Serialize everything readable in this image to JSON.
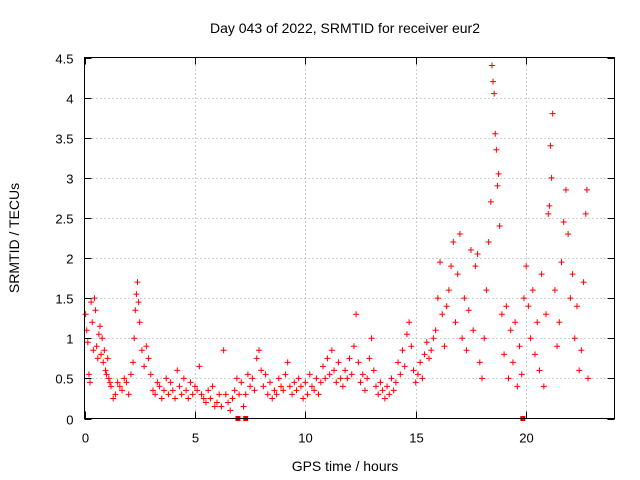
{
  "chart_data": {
    "type": "scatter",
    "title": "Day 043 of 2022, SRMTID for receiver eur2",
    "xlabel": "GPS time / hours",
    "ylabel": "SRMTID / TECUs",
    "xlim": [
      0,
      24
    ],
    "ylim": [
      0,
      4.5
    ],
    "x_ticks": [
      0,
      5,
      10,
      15,
      20
    ],
    "x_tick_labels": [
      "0",
      "5",
      "10",
      "15",
      "20"
    ],
    "y_ticks": [
      0,
      0.5,
      1,
      1.5,
      2,
      2.5,
      3,
      3.5,
      4,
      4.5
    ],
    "y_tick_labels": [
      "0",
      "0.5",
      "1",
      "1.5",
      "2",
      "2.5",
      "3",
      "3.5",
      "4",
      "4.5"
    ],
    "grid": true,
    "marker": "plus",
    "color": "#ff0000",
    "series": [
      {
        "name": "SRMTID",
        "points": [
          [
            0.05,
            1.3
          ],
          [
            0.1,
            1.1
          ],
          [
            0.15,
            0.95
          ],
          [
            0.2,
            0.55
          ],
          [
            0.25,
            0.45
          ],
          [
            0.3,
            1.45
          ],
          [
            0.35,
            1.2
          ],
          [
            0.4,
            0.85
          ],
          [
            0.45,
            1.5
          ],
          [
            0.5,
            1.35
          ],
          [
            0.55,
            0.9
          ],
          [
            0.6,
            0.75
          ],
          [
            0.65,
            1.05
          ],
          [
            0.7,
            1.15
          ],
          [
            0.75,
            0.8
          ],
          [
            0.8,
            1.0
          ],
          [
            0.85,
            0.7
          ],
          [
            0.9,
            0.85
          ],
          [
            0.95,
            0.6
          ],
          [
            1.0,
            0.55
          ],
          [
            1.05,
            0.75
          ],
          [
            1.1,
            0.5
          ],
          [
            1.15,
            0.45
          ],
          [
            1.2,
            0.4
          ],
          [
            1.3,
            0.25
          ],
          [
            1.4,
            0.3
          ],
          [
            1.5,
            0.45
          ],
          [
            1.6,
            0.4
          ],
          [
            1.7,
            0.35
          ],
          [
            1.8,
            0.5
          ],
          [
            1.9,
            0.45
          ],
          [
            2.0,
            0.3
          ],
          [
            2.1,
            0.55
          ],
          [
            2.2,
            0.7
          ],
          [
            2.25,
            1.0
          ],
          [
            2.3,
            1.35
          ],
          [
            2.35,
            1.55
          ],
          [
            2.4,
            1.7
          ],
          [
            2.45,
            1.45
          ],
          [
            2.5,
            1.2
          ],
          [
            2.6,
            0.85
          ],
          [
            2.7,
            0.65
          ],
          [
            2.8,
            0.9
          ],
          [
            2.9,
            0.75
          ],
          [
            3.0,
            0.55
          ],
          [
            3.1,
            0.35
          ],
          [
            3.2,
            0.3
          ],
          [
            3.3,
            0.45
          ],
          [
            3.4,
            0.4
          ],
          [
            3.5,
            0.25
          ],
          [
            3.6,
            0.35
          ],
          [
            3.7,
            0.5
          ],
          [
            3.8,
            0.3
          ],
          [
            3.9,
            0.45
          ],
          [
            4.0,
            0.35
          ],
          [
            4.1,
            0.25
          ],
          [
            4.2,
            0.6
          ],
          [
            4.3,
            0.4
          ],
          [
            4.4,
            0.3
          ],
          [
            4.5,
            0.5
          ],
          [
            4.6,
            0.35
          ],
          [
            4.7,
            0.25
          ],
          [
            4.8,
            0.45
          ],
          [
            4.9,
            0.3
          ],
          [
            5.0,
            0.4
          ],
          [
            5.1,
            0.35
          ],
          [
            5.2,
            0.65
          ],
          [
            5.3,
            0.3
          ],
          [
            5.4,
            0.25
          ],
          [
            5.5,
            0.2
          ],
          [
            5.6,
            0.35
          ],
          [
            5.7,
            0.25
          ],
          [
            5.8,
            0.4
          ],
          [
            5.9,
            0.15
          ],
          [
            6.0,
            0.2
          ],
          [
            6.1,
            0.3
          ],
          [
            6.2,
            0.15
          ],
          [
            6.3,
            0.85
          ],
          [
            6.4,
            0.3
          ],
          [
            6.5,
            0.2
          ],
          [
            6.6,
            0.1
          ],
          [
            6.7,
            0.25
          ],
          [
            6.8,
            0.35
          ],
          [
            6.9,
            0.5
          ],
          [
            7.0,
            0.3
          ],
          [
            7.1,
            0.45
          ],
          [
            7.2,
            0.15
          ],
          [
            7.3,
            0.3
          ],
          [
            7.4,
            0.55
          ],
          [
            7.5,
            0.4
          ],
          [
            7.6,
            0.5
          ],
          [
            7.7,
            0.35
          ],
          [
            7.8,
            0.75
          ],
          [
            7.9,
            0.85
          ],
          [
            8.0,
            0.6
          ],
          [
            8.1,
            0.4
          ],
          [
            8.2,
            0.55
          ],
          [
            8.3,
            0.3
          ],
          [
            8.4,
            0.45
          ],
          [
            8.5,
            0.25
          ],
          [
            8.6,
            0.35
          ],
          [
            8.7,
            0.3
          ],
          [
            8.8,
            0.5
          ],
          [
            8.9,
            0.4
          ],
          [
            9.0,
            0.35
          ],
          [
            9.1,
            0.55
          ],
          [
            9.2,
            0.7
          ],
          [
            9.3,
            0.4
          ],
          [
            9.4,
            0.3
          ],
          [
            9.5,
            0.45
          ],
          [
            9.6,
            0.35
          ],
          [
            9.7,
            0.5
          ],
          [
            9.8,
            0.4
          ],
          [
            9.9,
            0.25
          ],
          [
            10.0,
            0.45
          ],
          [
            10.1,
            0.3
          ],
          [
            10.2,
            0.55
          ],
          [
            10.3,
            0.4
          ],
          [
            10.4,
            0.35
          ],
          [
            10.5,
            0.5
          ],
          [
            10.6,
            0.3
          ],
          [
            10.7,
            0.45
          ],
          [
            10.8,
            0.65
          ],
          [
            10.9,
            0.5
          ],
          [
            11.0,
            0.75
          ],
          [
            11.1,
            0.55
          ],
          [
            11.2,
            0.85
          ],
          [
            11.3,
            0.6
          ],
          [
            11.4,
            0.45
          ],
          [
            11.5,
            0.7
          ],
          [
            11.6,
            0.5
          ],
          [
            11.7,
            0.4
          ],
          [
            11.8,
            0.6
          ],
          [
            11.9,
            0.5
          ],
          [
            12.0,
            0.75
          ],
          [
            12.1,
            0.55
          ],
          [
            12.2,
            0.9
          ],
          [
            12.3,
            1.3
          ],
          [
            12.4,
            0.7
          ],
          [
            12.5,
            0.45
          ],
          [
            12.6,
            0.55
          ],
          [
            12.7,
            0.35
          ],
          [
            12.8,
            0.5
          ],
          [
            12.9,
            0.75
          ],
          [
            13.0,
            1.0
          ],
          [
            13.1,
            0.6
          ],
          [
            13.2,
            0.4
          ],
          [
            13.3,
            0.3
          ],
          [
            13.4,
            0.45
          ],
          [
            13.5,
            0.35
          ],
          [
            13.6,
            0.25
          ],
          [
            13.7,
            0.4
          ],
          [
            13.8,
            0.3
          ],
          [
            13.9,
            0.5
          ],
          [
            14.0,
            0.35
          ],
          [
            14.1,
            0.45
          ],
          [
            14.2,
            0.7
          ],
          [
            14.3,
            0.55
          ],
          [
            14.4,
            0.85
          ],
          [
            14.5,
            0.65
          ],
          [
            14.6,
            1.05
          ],
          [
            14.7,
            1.2
          ],
          [
            14.8,
            0.9
          ],
          [
            14.9,
            0.6
          ],
          [
            15.0,
            0.45
          ],
          [
            15.1,
            0.55
          ],
          [
            15.2,
            0.7
          ],
          [
            15.3,
            0.5
          ],
          [
            15.4,
            0.8
          ],
          [
            15.5,
            0.95
          ],
          [
            15.6,
            0.75
          ],
          [
            15.7,
            0.85
          ],
          [
            15.8,
            1.0
          ],
          [
            15.9,
            1.1
          ],
          [
            16.0,
            1.5
          ],
          [
            16.1,
            1.95
          ],
          [
            16.2,
            1.3
          ],
          [
            16.3,
            0.9
          ],
          [
            16.4,
            1.4
          ],
          [
            16.5,
            1.6
          ],
          [
            16.6,
            1.9
          ],
          [
            16.7,
            2.2
          ],
          [
            16.8,
            1.2
          ],
          [
            16.9,
            1.8
          ],
          [
            17.0,
            2.3
          ],
          [
            17.1,
            1.0
          ],
          [
            17.2,
            1.5
          ],
          [
            17.3,
            0.85
          ],
          [
            17.4,
            1.35
          ],
          [
            17.5,
            2.1
          ],
          [
            17.6,
            1.1
          ],
          [
            17.7,
            1.9
          ],
          [
            17.8,
            2.05
          ],
          [
            17.9,
            0.7
          ],
          [
            18.0,
            0.5
          ],
          [
            18.1,
            1.0
          ],
          [
            18.2,
            1.6
          ],
          [
            18.3,
            2.2
          ],
          [
            18.4,
            2.7
          ],
          [
            18.45,
            4.4
          ],
          [
            18.5,
            4.2
          ],
          [
            18.55,
            4.05
          ],
          [
            18.6,
            3.55
          ],
          [
            18.65,
            3.35
          ],
          [
            18.7,
            2.9
          ],
          [
            18.75,
            3.05
          ],
          [
            18.8,
            2.4
          ],
          [
            18.9,
            1.3
          ],
          [
            19.0,
            0.8
          ],
          [
            19.1,
            1.4
          ],
          [
            19.2,
            0.5
          ],
          [
            19.3,
            1.1
          ],
          [
            19.4,
            0.7
          ],
          [
            19.5,
            1.2
          ],
          [
            19.6,
            0.4
          ],
          [
            19.7,
            0.9
          ],
          [
            19.8,
            0.55
          ],
          [
            19.9,
            1.5
          ],
          [
            20.0,
            1.9
          ],
          [
            20.1,
            1.4
          ],
          [
            20.2,
            1.0
          ],
          [
            20.3,
            1.6
          ],
          [
            20.4,
            0.8
          ],
          [
            20.5,
            1.2
          ],
          [
            20.6,
            0.6
          ],
          [
            20.7,
            1.8
          ],
          [
            20.8,
            0.4
          ],
          [
            20.9,
            1.3
          ],
          [
            21.0,
            2.55
          ],
          [
            21.05,
            2.65
          ],
          [
            21.1,
            3.4
          ],
          [
            21.15,
            3.0
          ],
          [
            21.2,
            3.8
          ],
          [
            21.3,
            1.6
          ],
          [
            21.4,
            0.9
          ],
          [
            21.5,
            1.2
          ],
          [
            21.6,
            1.95
          ],
          [
            21.7,
            2.45
          ],
          [
            21.8,
            2.85
          ],
          [
            21.9,
            2.3
          ],
          [
            22.0,
            1.5
          ],
          [
            22.1,
            1.8
          ],
          [
            22.2,
            1.0
          ],
          [
            22.3,
            1.4
          ],
          [
            22.4,
            0.6
          ],
          [
            22.5,
            0.85
          ],
          [
            22.6,
            1.7
          ],
          [
            22.7,
            2.55
          ],
          [
            22.75,
            2.85
          ],
          [
            22.8,
            0.5
          ]
        ]
      }
    ],
    "square_markers": [
      [
        6.95,
        0.0
      ],
      [
        7.3,
        0.0
      ],
      [
        19.85,
        0.0
      ]
    ]
  }
}
